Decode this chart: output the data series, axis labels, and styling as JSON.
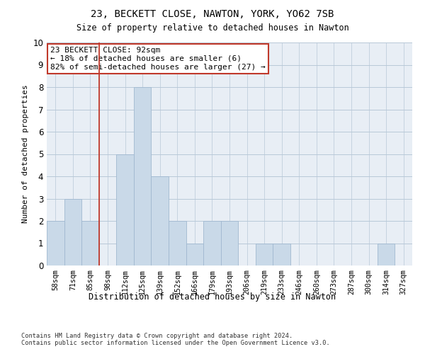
{
  "title1": "23, BECKETT CLOSE, NAWTON, YORK, YO62 7SB",
  "title2": "Size of property relative to detached houses in Nawton",
  "xlabel": "Distribution of detached houses by size in Nawton",
  "ylabel": "Number of detached properties",
  "categories": [
    "58sqm",
    "71sqm",
    "85sqm",
    "98sqm",
    "112sqm",
    "125sqm",
    "139sqm",
    "152sqm",
    "166sqm",
    "179sqm",
    "193sqm",
    "206sqm",
    "219sqm",
    "233sqm",
    "246sqm",
    "260sqm",
    "273sqm",
    "287sqm",
    "300sqm",
    "314sqm",
    "327sqm"
  ],
  "values": [
    2,
    3,
    2,
    0,
    5,
    8,
    4,
    2,
    1,
    2,
    2,
    0,
    1,
    1,
    0,
    0,
    0,
    0,
    0,
    1,
    0
  ],
  "bar_color": "#c9d9e8",
  "bar_edgecolor": "#a0b8d0",
  "vline_x": 2.5,
  "vline_color": "#c0392b",
  "annotation_text": "23 BECKETT CLOSE: 92sqm\n← 18% of detached houses are smaller (6)\n82% of semi-detached houses are larger (27) →",
  "annotation_box_color": "#c0392b",
  "ylim": [
    0,
    10
  ],
  "yticks": [
    0,
    1,
    2,
    3,
    4,
    5,
    6,
    7,
    8,
    9,
    10
  ],
  "plot_bg_color": "#e8eef5",
  "footer1": "Contains HM Land Registry data © Crown copyright and database right 2024.",
  "footer2": "Contains public sector information licensed under the Open Government Licence v3.0."
}
